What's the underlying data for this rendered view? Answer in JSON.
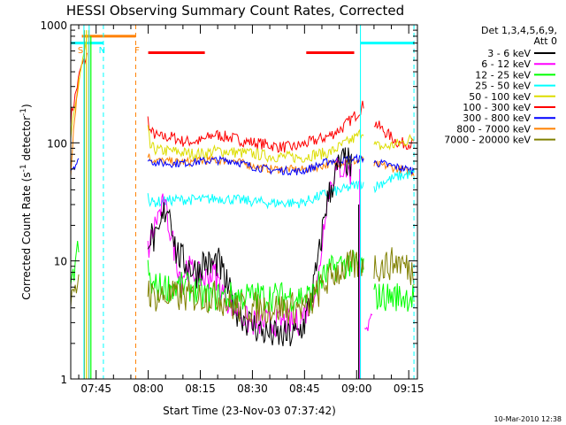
{
  "chart_data": {
    "type": "line",
    "title": "HESSI Observing Summary Count Rates, Corrected",
    "xlabel": "Start Time (23-Nov-03 07:37:42)",
    "ylabel_main": "Corrected Count Rate (s",
    "ylabel_sup": "-1",
    "ylabel_tail": " detector",
    "ylabel_sup2": "-1",
    "ylabel_end": ")",
    "ylog": true,
    "xlim": [
      457.7,
      557.5
    ],
    "ylim": [
      1,
      1000
    ],
    "x_ticks": [
      {
        "value": 465,
        "label": "07:45"
      },
      {
        "value": 480,
        "label": "08:00"
      },
      {
        "value": 495,
        "label": "08:15"
      },
      {
        "value": 510,
        "label": "08:30"
      },
      {
        "value": 525,
        "label": "08:45"
      },
      {
        "value": 540,
        "label": "09:00"
      },
      {
        "value": 555,
        "label": "09:15"
      }
    ],
    "y_ticks": [
      {
        "value": 1,
        "label": "1"
      },
      {
        "value": 10,
        "label": "10"
      },
      {
        "value": 100,
        "label": "100"
      },
      {
        "value": 1000,
        "label": "1000"
      }
    ],
    "legend": {
      "header": [
        "Det 1,3,4,5,6,9,",
        "Att 0"
      ],
      "items": [
        {
          "label": "3 - 6 keV",
          "color": "#000000"
        },
        {
          "label": "6 - 12 keV",
          "color": "#ff00ff"
        },
        {
          "label": "12 - 25 keV",
          "color": "#00ff00"
        },
        {
          "label": "25 - 50 keV",
          "color": "#00ffff"
        },
        {
          "label": "50 - 100 keV",
          "color": "#dddd00"
        },
        {
          "label": "100 - 300 keV",
          "color": "#ff0000"
        },
        {
          "label": "300 - 800 keV",
          "color": "#0000ff"
        },
        {
          "label": "800 - 7000 keV",
          "color": "#ff8000"
        },
        {
          "label": "7000 - 20000 keV",
          "color": "#808000"
        }
      ]
    },
    "orbit_markers": [
      {
        "label": "S",
        "x": 460.5,
        "color": "#ff8000"
      },
      {
        "label": "N",
        "x": 466.7,
        "color": "#00ffff"
      },
      {
        "label": "F",
        "x": 476.8,
        "color": "#ff8000"
      }
    ],
    "bars": [
      {
        "x": [
          457.7,
          467.1
        ],
        "y": 700,
        "color": "#00ffff"
      },
      {
        "x": [
          460.9,
          476.4
        ],
        "y": 800,
        "color": "#ff8000"
      },
      {
        "x": [
          480.0,
          496.3
        ],
        "y": 580,
        "color": "#ff0000"
      },
      {
        "x": [
          525.5,
          539.3
        ],
        "y": 580,
        "color": "#ff0000"
      },
      {
        "x": [
          541.1,
          556.5
        ],
        "y": 700,
        "color": "#00ffff"
      }
    ],
    "vlines": [
      {
        "x": 461.5,
        "color": "#00ffff",
        "dashed": false
      },
      {
        "x": 463.0,
        "color": "#00ffff",
        "dashed": false
      },
      {
        "x": 467.1,
        "color": "#00ffff",
        "dashed": true
      },
      {
        "x": 476.4,
        "color": "#ff8000",
        "dashed": true
      },
      {
        "x": 541.1,
        "color": "#00ffff",
        "dashed": false
      },
      {
        "x": 556.5,
        "color": "#00ffff",
        "dashed": true
      }
    ],
    "series": [
      {
        "name": "100 - 300 keV",
        "color": "#ff0000",
        "noise": 0.05,
        "points": [
          [
            457.7,
            160
          ],
          [
            460.5,
            420
          ],
          [
            462.4,
            550
          ],
          [
            463.2,
            null
          ],
          [
            479.5,
            null
          ],
          [
            479.9,
            160
          ],
          [
            480.6,
            125
          ],
          [
            483,
            112
          ],
          [
            487,
            112
          ],
          [
            490,
            103
          ],
          [
            495,
            103
          ],
          [
            499,
            118
          ],
          [
            504,
            110
          ],
          [
            508,
            103
          ],
          [
            513,
            98
          ],
          [
            518,
            92
          ],
          [
            522,
            92
          ],
          [
            526,
            100
          ],
          [
            532,
            114
          ],
          [
            536,
            135
          ],
          [
            540,
            175
          ],
          [
            542,
            210
          ],
          [
            542.3,
            null
          ],
          [
            544.5,
            null
          ],
          [
            545,
            150
          ],
          [
            548,
            125
          ],
          [
            552,
            100
          ],
          [
            556.5,
            98
          ]
        ]
      },
      {
        "name": "50 - 100 keV",
        "color": "#dddd00",
        "noise": 0.05,
        "points": [
          [
            457.7,
            110
          ],
          [
            460.5,
            400
          ],
          [
            462.4,
            750
          ],
          [
            463.2,
            null
          ],
          [
            479.5,
            null
          ],
          [
            479.9,
            130
          ],
          [
            480.6,
            92
          ],
          [
            483,
            86
          ],
          [
            487,
            85
          ],
          [
            492,
            81
          ],
          [
            496,
            81
          ],
          [
            500,
            86
          ],
          [
            505,
            83
          ],
          [
            510,
            81
          ],
          [
            515,
            77
          ],
          [
            520,
            76
          ],
          [
            524,
            75
          ],
          [
            528,
            80
          ],
          [
            532,
            82
          ],
          [
            536,
            96
          ],
          [
            540,
            112
          ],
          [
            542,
            128
          ],
          [
            542.3,
            null
          ],
          [
            544.5,
            null
          ],
          [
            545,
            95
          ],
          [
            548,
            92
          ],
          [
            552,
            98
          ],
          [
            556.5,
            110
          ]
        ]
      },
      {
        "name": "800 - 7000 keV",
        "color": "#ff8000",
        "noise": 0.035,
        "points": [
          [
            457.7,
            55
          ],
          [
            458.5,
            130
          ],
          [
            460,
            360
          ],
          [
            461,
            null
          ],
          [
            479.5,
            null
          ],
          [
            479.9,
            80
          ],
          [
            480.6,
            73
          ],
          [
            484,
            70
          ],
          [
            488,
            69
          ],
          [
            492,
            69
          ],
          [
            498,
            71
          ],
          [
            504,
            71
          ],
          [
            510,
            64
          ],
          [
            515,
            60
          ],
          [
            520,
            60
          ],
          [
            524,
            59
          ],
          [
            528,
            62
          ],
          [
            532,
            66
          ],
          [
            536,
            69
          ],
          [
            540,
            70
          ],
          [
            542,
            72
          ],
          [
            542.3,
            null
          ],
          [
            544.5,
            null
          ],
          [
            545,
            65
          ],
          [
            548,
            64
          ],
          [
            552,
            60
          ],
          [
            556.5,
            56
          ]
        ]
      },
      {
        "name": "300 - 800 keV",
        "color": "#0000ff",
        "noise": 0.035,
        "points": [
          [
            457.7,
            60
          ],
          [
            460,
            70
          ],
          [
            461,
            null
          ],
          [
            479.5,
            null
          ],
          [
            479.9,
            75
          ],
          [
            480.6,
            70
          ],
          [
            484,
            67
          ],
          [
            488,
            67
          ],
          [
            492,
            68
          ],
          [
            498,
            71
          ],
          [
            504,
            71
          ],
          [
            510,
            63
          ],
          [
            515,
            59
          ],
          [
            520,
            58
          ],
          [
            524,
            57
          ],
          [
            528,
            63
          ],
          [
            532,
            70
          ],
          [
            536,
            72
          ],
          [
            540,
            73
          ],
          [
            542,
            74
          ],
          [
            542.3,
            null
          ],
          [
            544.5,
            null
          ],
          [
            545,
            68
          ],
          [
            548,
            66
          ],
          [
            552,
            62
          ],
          [
            556.5,
            58
          ]
        ]
      },
      {
        "name": "25 - 50 keV",
        "color": "#00ffff",
        "noise": 0.045,
        "points": [
          [
            479.9,
            40
          ],
          [
            480.5,
            31
          ],
          [
            484,
            32
          ],
          [
            488,
            33
          ],
          [
            492,
            33
          ],
          [
            496,
            33
          ],
          [
            500,
            34
          ],
          [
            505,
            33
          ],
          [
            510,
            32
          ],
          [
            515,
            31
          ],
          [
            520,
            31
          ],
          [
            524,
            31
          ],
          [
            528,
            34
          ],
          [
            532,
            38
          ],
          [
            536,
            40
          ],
          [
            540,
            44
          ],
          [
            542,
            46
          ],
          [
            542.3,
            null
          ],
          [
            544.5,
            null
          ],
          [
            545,
            42
          ],
          [
            548,
            47
          ],
          [
            552,
            52
          ],
          [
            556.5,
            55
          ]
        ]
      },
      {
        "name": "6 - 12 keV",
        "color": "#ff00ff",
        "noise": 0.12,
        "points": [
          [
            479.9,
            12
          ],
          [
            480.5,
            14
          ],
          [
            482.5,
            23
          ],
          [
            484.5,
            30
          ],
          [
            486,
            20
          ],
          [
            488,
            11
          ],
          [
            489.5,
            7
          ],
          [
            491,
            9
          ],
          [
            493,
            8
          ],
          [
            496,
            7
          ],
          [
            499,
            8
          ],
          [
            502,
            5
          ],
          [
            505,
            4
          ],
          [
            509,
            3
          ],
          [
            513,
            3
          ],
          [
            517,
            3
          ],
          [
            520,
            3
          ],
          [
            523,
            3
          ],
          [
            526,
            4
          ],
          [
            529,
            7
          ],
          [
            531,
            28
          ],
          [
            533,
            52
          ],
          [
            535,
            62
          ],
          [
            537,
            60
          ],
          [
            538.5,
            55
          ],
          [
            539.5,
            null
          ],
          [
            542,
            null
          ],
          [
            542.3,
            3
          ],
          [
            544.5,
            3
          ],
          [
            544.6,
            null
          ]
        ]
      },
      {
        "name": "3 - 6 keV",
        "color": "#000000",
        "noise": 0.14,
        "points": [
          [
            479.9,
            17
          ],
          [
            481,
            16
          ],
          [
            482.5,
            14
          ],
          [
            484.5,
            25
          ],
          [
            485.5,
            30
          ],
          [
            486.5,
            25
          ],
          [
            488,
            12
          ],
          [
            490,
            10
          ],
          [
            492,
            9
          ],
          [
            494,
            8
          ],
          [
            496,
            10
          ],
          [
            498,
            9
          ],
          [
            500,
            10
          ],
          [
            502,
            7
          ],
          [
            505,
            4
          ],
          [
            509,
            3
          ],
          [
            513,
            2.5
          ],
          [
            517,
            2.3
          ],
          [
            520,
            2.3
          ],
          [
            523,
            2.4
          ],
          [
            525,
            3
          ],
          [
            527,
            5
          ],
          [
            529,
            10
          ],
          [
            531,
            28
          ],
          [
            533,
            45
          ],
          [
            535,
            65
          ],
          [
            537,
            72
          ],
          [
            538.5,
            60
          ],
          [
            539.5,
            null
          ]
        ]
      },
      {
        "name": "12 - 25 keV",
        "color": "#00ff00",
        "noise": 0.13,
        "points": [
          [
            457.7,
            5
          ],
          [
            459,
            10
          ],
          [
            460,
            13
          ],
          [
            461,
            null
          ],
          [
            479.5,
            null
          ],
          [
            479.9,
            8
          ],
          [
            481,
            6
          ],
          [
            484,
            6
          ],
          [
            488,
            6
          ],
          [
            492,
            6
          ],
          [
            496,
            5
          ],
          [
            500,
            5
          ],
          [
            505,
            5
          ],
          [
            510,
            5
          ],
          [
            515,
            5
          ],
          [
            520,
            5
          ],
          [
            524,
            5
          ],
          [
            527,
            5
          ],
          [
            530,
            7
          ],
          [
            534,
            9
          ],
          [
            538,
            9.5
          ],
          [
            540,
            9
          ],
          [
            542,
            9
          ],
          [
            542.3,
            null
          ],
          [
            544.5,
            null
          ],
          [
            545,
            5
          ],
          [
            548,
            5
          ],
          [
            552,
            5
          ],
          [
            556.5,
            5
          ]
        ]
      },
      {
        "name": "7000 - 20000 keV",
        "color": "#808000",
        "noise": 0.14,
        "points": [
          [
            457.7,
            4
          ],
          [
            459,
            5
          ],
          [
            460,
            8
          ],
          [
            461,
            null
          ],
          [
            479.5,
            null
          ],
          [
            479.9,
            6
          ],
          [
            481,
            5
          ],
          [
            484,
            5
          ],
          [
            488,
            5
          ],
          [
            492,
            5
          ],
          [
            496,
            5
          ],
          [
            500,
            5
          ],
          [
            505,
            4
          ],
          [
            510,
            4
          ],
          [
            515,
            4
          ],
          [
            520,
            4
          ],
          [
            524,
            4
          ],
          [
            526,
            4
          ],
          [
            530,
            6
          ],
          [
            534,
            8
          ],
          [
            538,
            9
          ],
          [
            540,
            9
          ],
          [
            542,
            10
          ],
          [
            542.3,
            null
          ],
          [
            544.5,
            null
          ],
          [
            545,
            9
          ],
          [
            548,
            9
          ],
          [
            552,
            10
          ],
          [
            556.5,
            8
          ]
        ]
      }
    ],
    "spikes": [
      {
        "x": 461.6,
        "y": [
          1,
          900
        ],
        "color": "#808000"
      },
      {
        "x": 462.2,
        "y": [
          1,
          900
        ],
        "color": "#dddd00"
      },
      {
        "x": 462.9,
        "y": [
          1,
          900
        ],
        "color": "#ff8000"
      },
      {
        "x": 463.5,
        "y": [
          1,
          800
        ],
        "color": "#00ff00"
      },
      {
        "x": 540.6,
        "y": [
          1,
          30
        ],
        "color": "#000000"
      },
      {
        "x": 540.9,
        "y": [
          1,
          60
        ],
        "color": "#ff00ff"
      }
    ]
  },
  "footer": {
    "date_stamp": "10-Mar-2010 12:38"
  }
}
